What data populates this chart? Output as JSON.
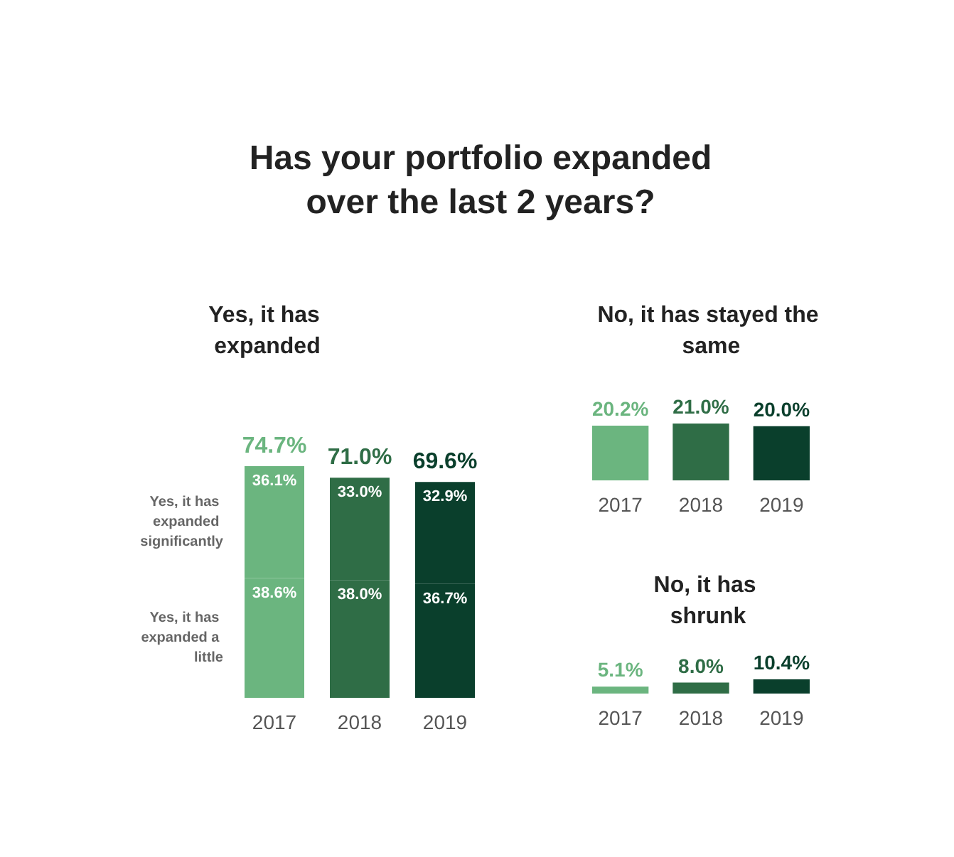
{
  "chart_data": [
    {
      "type": "bar",
      "title": "Has your portfolio expanded over the last 2 years?",
      "subtitle": "Yes, it has expanded",
      "categories": [
        "2017",
        "2018",
        "2019"
      ],
      "stacked": true,
      "series": [
        {
          "name": "Yes, it has expanded a little",
          "colors": [
            "#6bb57f",
            "#2f6d46",
            "#0a3f2c"
          ],
          "values": [
            38.6,
            38.0,
            36.7
          ],
          "value_labels": [
            "38.6%",
            "38.0%",
            "36.7%"
          ]
        },
        {
          "name": "Yes, it has expanded significantly",
          "colors": [
            "#6bb57f",
            "#2f6d46",
            "#0a3f2c"
          ],
          "values": [
            36.1,
            33.0,
            32.9
          ],
          "value_labels": [
            "36.1%",
            "33.0%",
            "32.9%"
          ]
        }
      ],
      "totals": [
        "74.7%",
        "71.0%",
        "69.6%"
      ]
    },
    {
      "type": "bar",
      "title": "No, it has stayed the same",
      "categories": [
        "2017",
        "2018",
        "2019"
      ],
      "colors": [
        "#6bb57f",
        "#2f6d46",
        "#0a3f2c"
      ],
      "values": [
        20.2,
        21.0,
        20.0
      ],
      "value_labels": [
        "20.2%",
        "21.0%",
        "20.0%"
      ]
    },
    {
      "type": "bar",
      "title": "No, it has shrunk",
      "categories": [
        "2017",
        "2018",
        "2019"
      ],
      "colors": [
        "#6bb57f",
        "#2f6d46",
        "#0a3f2c"
      ],
      "values": [
        5.1,
        8.0,
        10.4
      ],
      "value_labels": [
        "5.1%",
        "8.0%",
        "10.4%"
      ]
    }
  ]
}
